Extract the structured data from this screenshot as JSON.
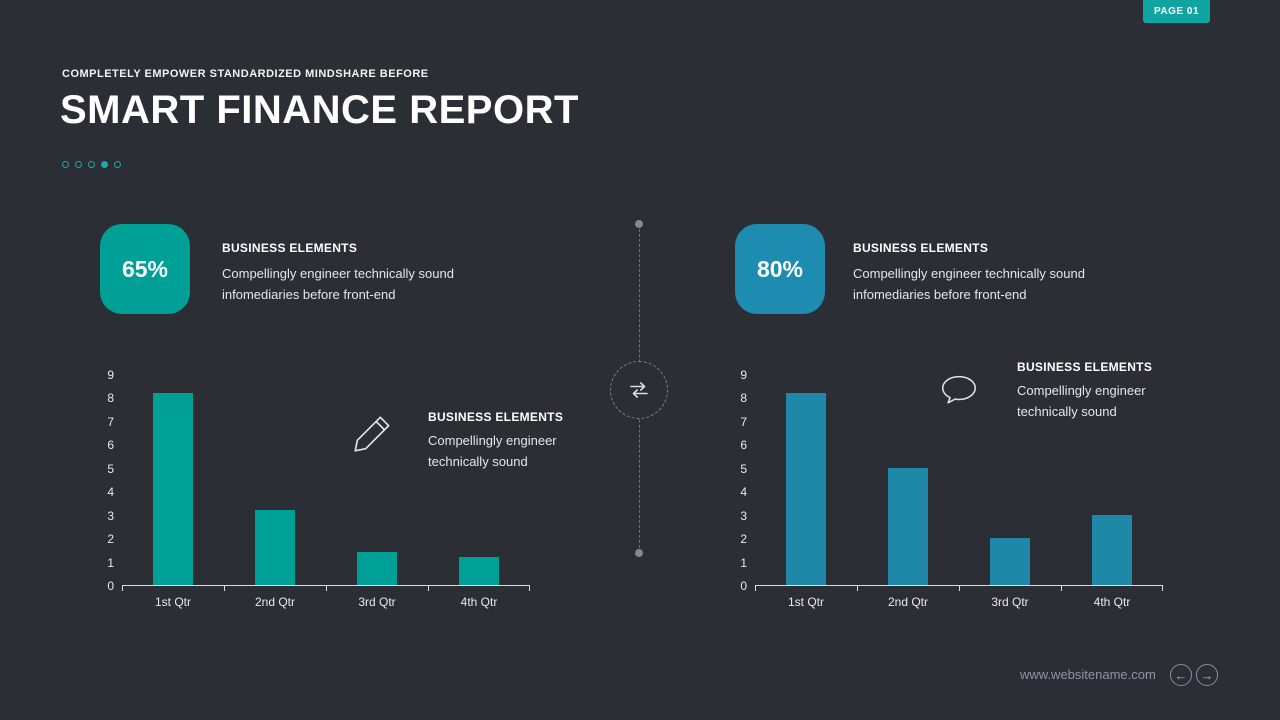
{
  "page_badge": "PAGE 01",
  "header": {
    "kicker": "COMPLETELY EMPOWER STANDARDIZED MINDSHARE BEFORE",
    "title": "SMART FINANCE REPORT"
  },
  "pagination": {
    "dots_total": 5,
    "active_dot": 4
  },
  "panels": [
    {
      "stat": {
        "value": "65%",
        "box_color": "#00a096",
        "heading": "BUSINESS ELEMENTS",
        "body": "Compellingly engineer technically sound infomediaries before front-end"
      },
      "annotation": {
        "icon": "pencil-icon",
        "heading": "BUSINESS ELEMENTS",
        "body": "Compellingly engineer technically sound"
      }
    },
    {
      "stat": {
        "value": "80%",
        "box_color": "#1d8cb0",
        "heading": "BUSINESS ELEMENTS",
        "body": "Compellingly engineer technically sound infomediaries before front-end"
      },
      "annotation": {
        "icon": "speech-bubble-icon",
        "heading": "BUSINESS ELEMENTS",
        "body": "Compellingly engineer technically sound"
      }
    }
  ],
  "chart_data": [
    {
      "type": "bar",
      "categories": [
        "1st Qtr",
        "2nd Qtr",
        "3rd Qtr",
        "4th Qtr"
      ],
      "values": [
        8.2,
        3.2,
        1.4,
        1.2
      ],
      "ylim": [
        0,
        9
      ],
      "ytick_step": 1,
      "bar_color": "#00a096",
      "axis_color": "#d9dbde",
      "grid": false,
      "legend": "none",
      "title": "",
      "xlabel": "",
      "ylabel": ""
    },
    {
      "type": "bar",
      "categories": [
        "1st Qtr",
        "2nd Qtr",
        "3rd Qtr",
        "4th Qtr"
      ],
      "values": [
        8.2,
        5,
        2,
        3
      ],
      "ylim": [
        0,
        9
      ],
      "ytick_step": 1,
      "bar_color": "#1f87a8",
      "axis_color": "#d9dbde",
      "grid": false,
      "legend": "none",
      "title": "",
      "xlabel": "",
      "ylabel": ""
    }
  ],
  "center_icon": "repeat-icon",
  "footer": {
    "website": "www.websitename.com",
    "prev_icon": "←",
    "next_icon": "→"
  }
}
